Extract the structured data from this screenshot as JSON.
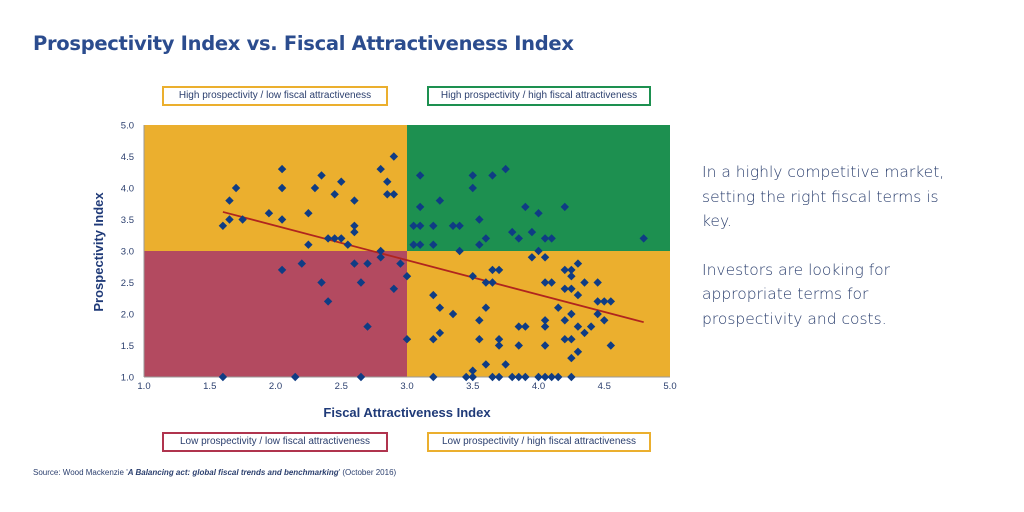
{
  "title": "Prospectivity Index vs. Fiscal Attractiveness Index",
  "quadrant_labels": {
    "top_left": "High prospectivity / low fiscal attractiveness",
    "top_right": "High prospectivity / high fiscal attractiveness",
    "bottom_left": "Low prospectivity / low fiscal attractiveness",
    "bottom_right": "Low prospectivity / high fiscal attractiveness"
  },
  "side_text": {
    "paragraph1": "In a highly competitive market, setting the right fiscal terms is key.",
    "paragraph2": "Investors are looking for appropriate terms for prospectivity and costs."
  },
  "source": {
    "prefix": "Source: Wood Mackenzie '",
    "report": "A Balancing act: global fiscal trends and benchmarking",
    "suffix": "' (October 2016)"
  },
  "colors": {
    "high_low": "#EBAF2E",
    "high_high": "#1D9050",
    "low_low": "#B34A60",
    "low_high": "#EBAF2E",
    "marker": "#0F3C84",
    "trendline": "#B0251E",
    "axis_text": "#2B3F6E"
  },
  "chart_data": {
    "type": "scatter",
    "title": "Prospectivity Index vs. Fiscal Attractiveness Index",
    "xlabel": "Fiscal Attractiveness Index",
    "ylabel": "Prospectivity Index",
    "xlim": [
      1.0,
      5.0
    ],
    "ylim": [
      1.0,
      5.0
    ],
    "xticks": [
      "1.0",
      "1.5",
      "2.0",
      "2.5",
      "3.0",
      "3.5",
      "4.0",
      "4.5",
      "5.0"
    ],
    "yticks": [
      "1.0",
      "1.5",
      "2.0",
      "2.5",
      "3.0",
      "3.5",
      "4.0",
      "4.5",
      "5.0"
    ],
    "grid": false,
    "quadrant_split": {
      "x": 3.0,
      "y": 3.0
    },
    "trendline": {
      "x": [
        1.6,
        4.8
      ],
      "y": [
        3.62,
        1.87
      ]
    },
    "points": [
      [
        1.6,
        3.4
      ],
      [
        1.65,
        3.5
      ],
      [
        1.65,
        3.8
      ],
      [
        1.7,
        4.0
      ],
      [
        1.75,
        3.5
      ],
      [
        1.95,
        3.6
      ],
      [
        2.05,
        4.3
      ],
      [
        2.05,
        4.0
      ],
      [
        2.05,
        3.5
      ],
      [
        2.35,
        4.2
      ],
      [
        2.3,
        4.0
      ],
      [
        2.5,
        4.1
      ],
      [
        2.45,
        3.9
      ],
      [
        2.6,
        3.8
      ],
      [
        2.25,
        3.6
      ],
      [
        2.6,
        3.4
      ],
      [
        2.6,
        3.3
      ],
      [
        2.4,
        3.2
      ],
      [
        2.45,
        3.2
      ],
      [
        2.5,
        3.2
      ],
      [
        2.55,
        3.1
      ],
      [
        2.25,
        3.1
      ],
      [
        2.8,
        4.3
      ],
      [
        2.9,
        4.5
      ],
      [
        2.85,
        4.1
      ],
      [
        2.85,
        3.9
      ],
      [
        2.9,
        3.9
      ],
      [
        2.8,
        3.0
      ],
      [
        2.05,
        2.7
      ],
      [
        2.2,
        2.8
      ],
      [
        2.35,
        2.5
      ],
      [
        2.4,
        2.2
      ],
      [
        2.6,
        2.8
      ],
      [
        2.7,
        2.8
      ],
      [
        2.65,
        2.5
      ],
      [
        2.7,
        1.8
      ],
      [
        2.8,
        2.9
      ],
      [
        2.95,
        2.8
      ],
      [
        3.0,
        2.6
      ],
      [
        2.9,
        2.4
      ],
      [
        3.0,
        1.6
      ],
      [
        1.6,
        1.0
      ],
      [
        2.15,
        1.0
      ],
      [
        2.65,
        1.0
      ],
      [
        3.1,
        4.2
      ],
      [
        3.5,
        4.2
      ],
      [
        3.5,
        4.0
      ],
      [
        3.65,
        4.2
      ],
      [
        3.75,
        4.3
      ],
      [
        3.25,
        3.8
      ],
      [
        3.1,
        3.7
      ],
      [
        3.9,
        3.7
      ],
      [
        4.0,
        3.6
      ],
      [
        4.2,
        3.7
      ],
      [
        3.05,
        3.4
      ],
      [
        3.1,
        3.4
      ],
      [
        3.2,
        3.4
      ],
      [
        3.35,
        3.4
      ],
      [
        3.4,
        3.4
      ],
      [
        3.55,
        3.5
      ],
      [
        3.8,
        3.3
      ],
      [
        3.85,
        3.2
      ],
      [
        3.95,
        3.3
      ],
      [
        3.6,
        3.2
      ],
      [
        3.55,
        3.1
      ],
      [
        4.05,
        3.2
      ],
      [
        4.1,
        3.2
      ],
      [
        3.05,
        3.1
      ],
      [
        3.1,
        3.1
      ],
      [
        3.2,
        3.1
      ],
      [
        3.4,
        3.0
      ],
      [
        4.0,
        3.0
      ],
      [
        4.8,
        3.2
      ],
      [
        3.65,
        2.7
      ],
      [
        3.7,
        2.7
      ],
      [
        3.5,
        2.6
      ],
      [
        3.6,
        2.5
      ],
      [
        3.65,
        2.5
      ],
      [
        3.2,
        2.3
      ],
      [
        3.25,
        2.1
      ],
      [
        3.35,
        2.0
      ],
      [
        3.6,
        2.1
      ],
      [
        3.55,
        1.9
      ],
      [
        3.2,
        1.6
      ],
      [
        3.25,
        1.7
      ],
      [
        3.55,
        1.6
      ],
      [
        3.7,
        1.6
      ],
      [
        3.7,
        1.5
      ],
      [
        3.85,
        1.8
      ],
      [
        3.9,
        1.8
      ],
      [
        3.85,
        1.5
      ],
      [
        3.6,
        1.2
      ],
      [
        3.5,
        1.1
      ],
      [
        3.75,
        1.2
      ],
      [
        3.95,
        2.9
      ],
      [
        4.05,
        2.9
      ],
      [
        4.2,
        2.7
      ],
      [
        4.25,
        2.7
      ],
      [
        4.3,
        2.8
      ],
      [
        4.25,
        2.6
      ],
      [
        4.05,
        2.5
      ],
      [
        4.1,
        2.5
      ],
      [
        4.35,
        2.5
      ],
      [
        4.45,
        2.5
      ],
      [
        4.2,
        2.4
      ],
      [
        4.25,
        2.4
      ],
      [
        4.3,
        2.3
      ],
      [
        4.45,
        2.2
      ],
      [
        4.5,
        2.2
      ],
      [
        4.55,
        2.2
      ],
      [
        4.15,
        2.1
      ],
      [
        4.45,
        2.0
      ],
      [
        4.25,
        2.0
      ],
      [
        4.2,
        1.9
      ],
      [
        4.5,
        1.9
      ],
      [
        4.05,
        1.9
      ],
      [
        4.05,
        1.8
      ],
      [
        4.3,
        1.8
      ],
      [
        4.4,
        1.8
      ],
      [
        4.35,
        1.7
      ],
      [
        4.2,
        1.6
      ],
      [
        4.25,
        1.6
      ],
      [
        4.05,
        1.5
      ],
      [
        4.55,
        1.5
      ],
      [
        4.3,
        1.4
      ],
      [
        4.25,
        1.3
      ],
      [
        3.2,
        1.0
      ],
      [
        3.45,
        1.0
      ],
      [
        3.5,
        1.0
      ],
      [
        3.65,
        1.0
      ],
      [
        3.7,
        1.0
      ],
      [
        3.8,
        1.0
      ],
      [
        3.85,
        1.0
      ],
      [
        3.9,
        1.0
      ],
      [
        4.0,
        1.0
      ],
      [
        4.05,
        1.0
      ],
      [
        4.1,
        1.0
      ],
      [
        4.15,
        1.0
      ],
      [
        4.25,
        1.0
      ]
    ]
  }
}
